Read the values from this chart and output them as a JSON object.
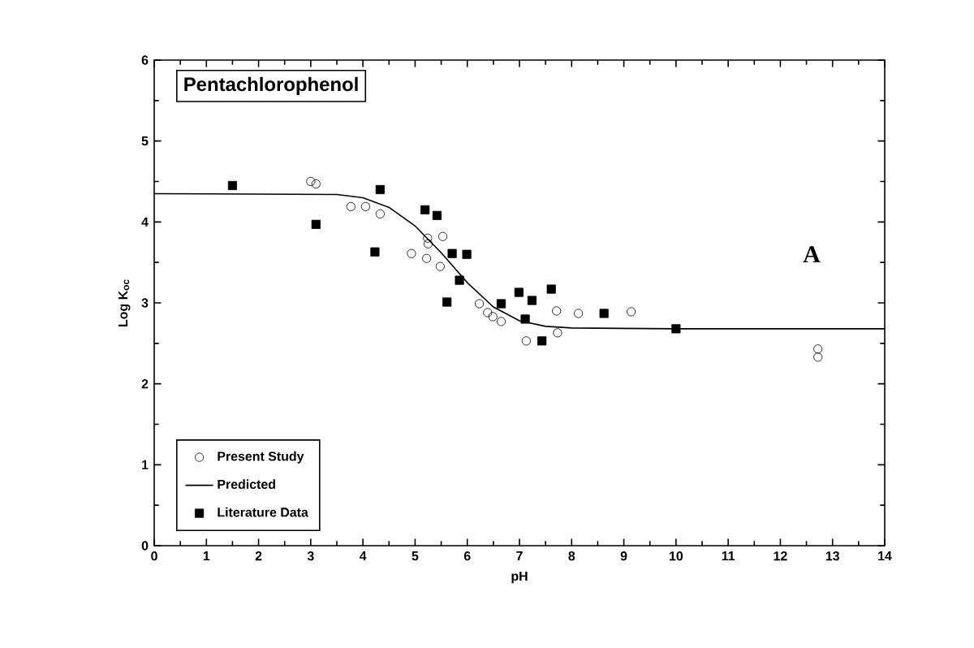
{
  "chart_data": {
    "type": "scatter",
    "title": "Pentachlorophenol",
    "xlabel": "pH",
    "ylabel": "Log K$_{oc}$",
    "xlim": [
      0,
      14
    ],
    "ylim": [
      0,
      6
    ],
    "xticks": [
      0,
      1,
      2,
      3,
      4,
      5,
      6,
      7,
      8,
      9,
      10,
      11,
      12,
      13,
      14
    ],
    "yticks": [
      0,
      1,
      2,
      3,
      4,
      5,
      6
    ],
    "legend": "bottom left",
    "grid": false,
    "annotations": [
      "A"
    ],
    "series": [
      {
        "name": "Present Study",
        "marker": "circle",
        "color": "#000000",
        "x": [
          3.0,
          3.1,
          3.77,
          4.05,
          4.33,
          5.24,
          5.53,
          4.93,
          5.22,
          5.48,
          5.25,
          6.23,
          6.39,
          6.65,
          6.49,
          7.71,
          7.13,
          7.73,
          8.13,
          9.14,
          12.72,
          12.72
        ],
        "values": [
          4.5,
          4.47,
          4.19,
          4.19,
          4.1,
          3.8,
          3.82,
          3.61,
          3.55,
          3.45,
          3.73,
          2.99,
          2.88,
          2.77,
          2.83,
          2.9,
          2.53,
          2.63,
          2.87,
          2.89,
          2.43,
          2.33
        ]
      },
      {
        "name": "Predicted",
        "type": "line",
        "marker": "none",
        "line_style": "solid",
        "color": "#000000",
        "x": [
          0,
          3.5,
          4,
          4.5,
          5,
          5.5,
          6,
          6.5,
          7,
          7.5,
          8,
          10,
          14
        ],
        "values": [
          4.35,
          4.34,
          4.3,
          4.18,
          3.95,
          3.62,
          3.25,
          2.95,
          2.78,
          2.71,
          2.69,
          2.68,
          2.68
        ]
      },
      {
        "name": "Literature Data",
        "marker": "square",
        "color": "#000000",
        "x": [
          1.5,
          3.1,
          4.33,
          4.23,
          5.19,
          5.42,
          5.71,
          5.99,
          5.85,
          5.61,
          6.65,
          6.99,
          7.24,
          7.61,
          7.11,
          7.43,
          8.62,
          10.0
        ],
        "values": [
          4.45,
          3.97,
          4.4,
          3.63,
          4.15,
          4.08,
          3.61,
          3.6,
          3.28,
          3.01,
          2.99,
          3.13,
          3.03,
          3.17,
          2.8,
          2.53,
          2.87,
          2.68
        ]
      }
    ]
  }
}
